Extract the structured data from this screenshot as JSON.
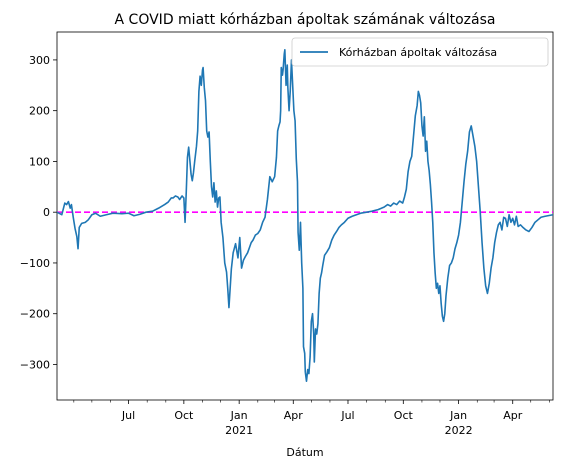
{
  "chart_data": {
    "type": "line",
    "title": "A COVID miatt kórházban ápoltak számának változása",
    "xlabel": "Dátum",
    "ylabel": "",
    "ylim": [
      -370,
      355
    ],
    "xlim": [
      "2020-03-04",
      "2022-06-07"
    ],
    "grid": false,
    "legend_placement": "top-right",
    "y_ticks": [
      -300,
      -200,
      -100,
      0,
      100,
      200,
      300
    ],
    "y_tick_labels": [
      "−300",
      "−200",
      "−100",
      "0",
      "100",
      "200",
      "300"
    ],
    "x_major_ticks": [
      {
        "date": "2020-07-01",
        "label": "Jul",
        "sub": ""
      },
      {
        "date": "2020-10-01",
        "label": "Oct",
        "sub": ""
      },
      {
        "date": "2021-01-01",
        "label": "Jan",
        "sub": "2021"
      },
      {
        "date": "2021-04-01",
        "label": "Apr",
        "sub": ""
      },
      {
        "date": "2021-07-01",
        "label": "Jul",
        "sub": ""
      },
      {
        "date": "2021-10-01",
        "label": "Oct",
        "sub": ""
      },
      {
        "date": "2022-01-01",
        "label": "Jan",
        "sub": "2022"
      },
      {
        "date": "2022-04-01",
        "label": "Apr",
        "sub": ""
      }
    ],
    "x_minor_ticks": [
      "2020-04-01",
      "2020-05-01",
      "2020-06-01",
      "2020-08-01",
      "2020-09-01",
      "2020-11-01",
      "2020-12-01",
      "2021-02-01",
      "2021-03-01",
      "2021-05-01",
      "2021-06-01",
      "2021-08-01",
      "2021-09-01",
      "2021-11-01",
      "2021-12-01",
      "2022-02-01",
      "2022-03-01",
      "2022-05-01",
      "2022-06-01"
    ],
    "reference_line": {
      "y": 0,
      "color": "#ff00ff",
      "style": "dashed"
    },
    "series": [
      {
        "name": "Kórházban ápoltak változása",
        "color": "#1f77b4",
        "points": [
          [
            "2020-03-04",
            0
          ],
          [
            "2020-03-12",
            -5
          ],
          [
            "2020-03-17",
            18
          ],
          [
            "2020-03-20",
            15
          ],
          [
            "2020-03-23",
            21
          ],
          [
            "2020-03-26",
            8
          ],
          [
            "2020-03-28",
            15
          ],
          [
            "2020-03-31",
            -10
          ],
          [
            "2020-04-03",
            -32
          ],
          [
            "2020-04-06",
            -48
          ],
          [
            "2020-04-08",
            -72
          ],
          [
            "2020-04-10",
            -30
          ],
          [
            "2020-04-14",
            -22
          ],
          [
            "2020-04-20",
            -20
          ],
          [
            "2020-04-25",
            -15
          ],
          [
            "2020-05-01",
            -5
          ],
          [
            "2020-05-07",
            -2
          ],
          [
            "2020-05-15",
            -8
          ],
          [
            "2020-05-25",
            -5
          ],
          [
            "2020-06-05",
            -2
          ],
          [
            "2020-06-20",
            -3
          ],
          [
            "2020-07-01",
            -2
          ],
          [
            "2020-07-10",
            -7
          ],
          [
            "2020-07-20",
            -4
          ],
          [
            "2020-07-30",
            0
          ],
          [
            "2020-08-10",
            2
          ],
          [
            "2020-08-20",
            8
          ],
          [
            "2020-08-30",
            15
          ],
          [
            "2020-09-05",
            20
          ],
          [
            "2020-09-10",
            28
          ],
          [
            "2020-09-13",
            28
          ],
          [
            "2020-09-17",
            32
          ],
          [
            "2020-09-21",
            30
          ],
          [
            "2020-09-24",
            25
          ],
          [
            "2020-09-28",
            32
          ],
          [
            "2020-10-01",
            28
          ],
          [
            "2020-10-03",
            -20
          ],
          [
            "2020-10-05",
            40
          ],
          [
            "2020-10-07",
            108
          ],
          [
            "2020-10-09",
            128
          ],
          [
            "2020-10-11",
            102
          ],
          [
            "2020-10-13",
            75
          ],
          [
            "2020-10-15",
            62
          ],
          [
            "2020-10-17",
            78
          ],
          [
            "2020-10-19",
            100
          ],
          [
            "2020-10-22",
            130
          ],
          [
            "2020-10-24",
            160
          ],
          [
            "2020-10-26",
            238
          ],
          [
            "2020-10-28",
            268
          ],
          [
            "2020-10-30",
            250
          ],
          [
            "2020-11-01",
            280
          ],
          [
            "2020-11-02",
            285
          ],
          [
            "2020-11-04",
            245
          ],
          [
            "2020-11-06",
            220
          ],
          [
            "2020-11-08",
            160
          ],
          [
            "2020-11-10",
            148
          ],
          [
            "2020-11-12",
            158
          ],
          [
            "2020-11-14",
            100
          ],
          [
            "2020-11-16",
            50
          ],
          [
            "2020-11-18",
            30
          ],
          [
            "2020-11-20",
            58
          ],
          [
            "2020-11-22",
            20
          ],
          [
            "2020-11-24",
            42
          ],
          [
            "2020-11-26",
            10
          ],
          [
            "2020-11-28",
            28
          ],
          [
            "2020-11-30",
            30
          ],
          [
            "2020-12-02",
            -20
          ],
          [
            "2020-12-05",
            -50
          ],
          [
            "2020-12-08",
            -100
          ],
          [
            "2020-12-11",
            -118
          ],
          [
            "2020-12-13",
            -150
          ],
          [
            "2020-12-15",
            -188
          ],
          [
            "2020-12-17",
            -150
          ],
          [
            "2020-12-19",
            -112
          ],
          [
            "2020-12-22",
            -80
          ],
          [
            "2020-12-26",
            -62
          ],
          [
            "2020-12-30",
            -90
          ],
          [
            "2021-01-02",
            -50
          ],
          [
            "2021-01-05",
            -110
          ],
          [
            "2021-01-08",
            -95
          ],
          [
            "2021-01-11",
            -88
          ],
          [
            "2021-01-15",
            -80
          ],
          [
            "2021-01-18",
            -70
          ],
          [
            "2021-01-21",
            -60
          ],
          [
            "2021-01-24",
            -55
          ],
          [
            "2021-01-28",
            -45
          ],
          [
            "2021-02-01",
            -42
          ],
          [
            "2021-02-05",
            -35
          ],
          [
            "2021-02-09",
            -20
          ],
          [
            "2021-02-13",
            -10
          ],
          [
            "2021-02-17",
            25
          ],
          [
            "2021-02-21",
            70
          ],
          [
            "2021-02-25",
            60
          ],
          [
            "2021-03-01",
            70
          ],
          [
            "2021-03-04",
            108
          ],
          [
            "2021-03-06",
            160
          ],
          [
            "2021-03-08",
            170
          ],
          [
            "2021-03-10",
            178
          ],
          [
            "2021-03-11",
            200
          ],
          [
            "2021-03-12",
            285
          ],
          [
            "2021-03-14",
            270
          ],
          [
            "2021-03-15",
            280
          ],
          [
            "2021-03-17",
            312
          ],
          [
            "2021-03-18",
            320
          ],
          [
            "2021-03-20",
            250
          ],
          [
            "2021-03-22",
            290
          ],
          [
            "2021-03-23",
            245
          ],
          [
            "2021-03-25",
            200
          ],
          [
            "2021-03-27",
            240
          ],
          [
            "2021-03-29",
            300
          ],
          [
            "2021-03-31",
            250
          ],
          [
            "2021-04-02",
            200
          ],
          [
            "2021-04-04",
            180
          ],
          [
            "2021-04-06",
            105
          ],
          [
            "2021-04-08",
            60
          ],
          [
            "2021-04-09",
            -40
          ],
          [
            "2021-04-11",
            -75
          ],
          [
            "2021-04-13",
            -20
          ],
          [
            "2021-04-15",
            -100
          ],
          [
            "2021-04-17",
            -150
          ],
          [
            "2021-04-18",
            -265
          ],
          [
            "2021-04-20",
            -278
          ],
          [
            "2021-04-21",
            -315
          ],
          [
            "2021-04-23",
            -333
          ],
          [
            "2021-04-25",
            -310
          ],
          [
            "2021-04-27",
            -318
          ],
          [
            "2021-04-29",
            -285
          ],
          [
            "2021-05-01",
            -215
          ],
          [
            "2021-05-03",
            -200
          ],
          [
            "2021-05-05",
            -240
          ],
          [
            "2021-05-06",
            -295
          ],
          [
            "2021-05-08",
            -230
          ],
          [
            "2021-05-10",
            -240
          ],
          [
            "2021-05-12",
            -220
          ],
          [
            "2021-05-14",
            -160
          ],
          [
            "2021-05-16",
            -130
          ],
          [
            "2021-05-18",
            -120
          ],
          [
            "2021-05-20",
            -105
          ],
          [
            "2021-05-23",
            -85
          ],
          [
            "2021-05-27",
            -78
          ],
          [
            "2021-05-31",
            -70
          ],
          [
            "2021-06-04",
            -55
          ],
          [
            "2021-06-08",
            -45
          ],
          [
            "2021-06-12",
            -38
          ],
          [
            "2021-06-16",
            -30
          ],
          [
            "2021-06-20",
            -25
          ],
          [
            "2021-06-25",
            -20
          ],
          [
            "2021-07-01",
            -12
          ],
          [
            "2021-07-08",
            -8
          ],
          [
            "2021-07-15",
            -5
          ],
          [
            "2021-07-22",
            -2
          ],
          [
            "2021-08-01",
            0
          ],
          [
            "2021-08-10",
            2
          ],
          [
            "2021-08-20",
            5
          ],
          [
            "2021-08-30",
            10
          ],
          [
            "2021-09-05",
            15
          ],
          [
            "2021-09-10",
            12
          ],
          [
            "2021-09-15",
            18
          ],
          [
            "2021-09-20",
            15
          ],
          [
            "2021-09-25",
            22
          ],
          [
            "2021-09-30",
            18
          ],
          [
            "2021-10-03",
            30
          ],
          [
            "2021-10-06",
            45
          ],
          [
            "2021-10-09",
            80
          ],
          [
            "2021-10-12",
            100
          ],
          [
            "2021-10-15",
            110
          ],
          [
            "2021-10-18",
            150
          ],
          [
            "2021-10-21",
            190
          ],
          [
            "2021-10-24",
            210
          ],
          [
            "2021-10-26",
            238
          ],
          [
            "2021-10-28",
            230
          ],
          [
            "2021-10-30",
            215
          ],
          [
            "2021-11-01",
            170
          ],
          [
            "2021-11-03",
            150
          ],
          [
            "2021-11-05",
            188
          ],
          [
            "2021-11-07",
            120
          ],
          [
            "2021-11-09",
            140
          ],
          [
            "2021-11-11",
            100
          ],
          [
            "2021-11-13",
            82
          ],
          [
            "2021-11-15",
            55
          ],
          [
            "2021-11-17",
            20
          ],
          [
            "2021-11-19",
            -20
          ],
          [
            "2021-11-21",
            -80
          ],
          [
            "2021-11-23",
            -120
          ],
          [
            "2021-11-25",
            -150
          ],
          [
            "2021-11-27",
            -140
          ],
          [
            "2021-11-29",
            -160
          ],
          [
            "2021-12-01",
            -145
          ],
          [
            "2021-12-03",
            -180
          ],
          [
            "2021-12-05",
            -205
          ],
          [
            "2021-12-07",
            -215
          ],
          [
            "2021-12-09",
            -200
          ],
          [
            "2021-12-11",
            -165
          ],
          [
            "2021-12-14",
            -130
          ],
          [
            "2021-12-17",
            -105
          ],
          [
            "2021-12-20",
            -100
          ],
          [
            "2021-12-23",
            -90
          ],
          [
            "2021-12-26",
            -72
          ],
          [
            "2021-12-29",
            -60
          ],
          [
            "2022-01-01",
            -45
          ],
          [
            "2022-01-04",
            -20
          ],
          [
            "2022-01-07",
            20
          ],
          [
            "2022-01-10",
            60
          ],
          [
            "2022-01-13",
            95
          ],
          [
            "2022-01-16",
            120
          ],
          [
            "2022-01-19",
            158
          ],
          [
            "2022-01-22",
            170
          ],
          [
            "2022-01-25",
            150
          ],
          [
            "2022-01-28",
            130
          ],
          [
            "2022-01-31",
            100
          ],
          [
            "2022-02-03",
            50
          ],
          [
            "2022-02-06",
            0
          ],
          [
            "2022-02-09",
            -60
          ],
          [
            "2022-02-12",
            -110
          ],
          [
            "2022-02-15",
            -145
          ],
          [
            "2022-02-18",
            -160
          ],
          [
            "2022-02-21",
            -140
          ],
          [
            "2022-02-24",
            -110
          ],
          [
            "2022-02-27",
            -90
          ],
          [
            "2022-03-02",
            -60
          ],
          [
            "2022-03-05",
            -40
          ],
          [
            "2022-03-08",
            -25
          ],
          [
            "2022-03-11",
            -20
          ],
          [
            "2022-03-14",
            -35
          ],
          [
            "2022-03-17",
            -10
          ],
          [
            "2022-03-20",
            -12
          ],
          [
            "2022-03-23",
            -28
          ],
          [
            "2022-03-26",
            -5
          ],
          [
            "2022-03-29",
            -20
          ],
          [
            "2022-04-01",
            -12
          ],
          [
            "2022-04-04",
            -25
          ],
          [
            "2022-04-07",
            -8
          ],
          [
            "2022-04-10",
            -28
          ],
          [
            "2022-04-14",
            -25
          ],
          [
            "2022-04-18",
            -30
          ],
          [
            "2022-04-23",
            -35
          ],
          [
            "2022-04-28",
            -38
          ],
          [
            "2022-05-03",
            -30
          ],
          [
            "2022-05-08",
            -20
          ],
          [
            "2022-05-13",
            -15
          ],
          [
            "2022-05-18",
            -10
          ],
          [
            "2022-05-25",
            -8
          ],
          [
            "2022-06-07",
            -5
          ]
        ]
      }
    ]
  }
}
